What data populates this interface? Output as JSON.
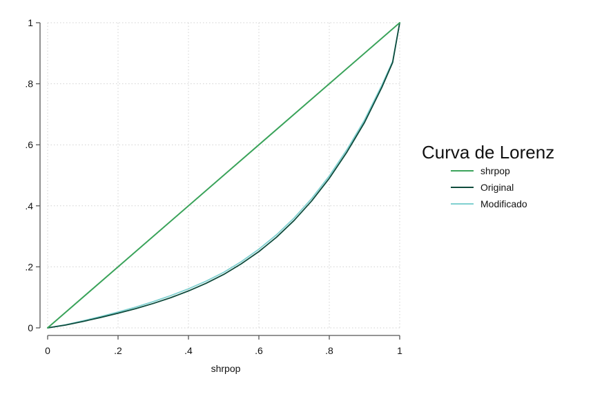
{
  "chart_data": {
    "type": "line",
    "xlabel": "shrpop",
    "ylabel": "",
    "xlim": [
      0,
      1
    ],
    "ylim": [
      0,
      1
    ],
    "x_ticks": [
      0,
      0.2,
      0.4,
      0.6,
      0.8,
      1
    ],
    "x_tick_labels": [
      "0",
      ".2",
      ".4",
      ".6",
      ".8",
      "1"
    ],
    "y_ticks": [
      0,
      0.2,
      0.4,
      0.6,
      0.8,
      1
    ],
    "y_tick_labels": [
      "0",
      ".2",
      ".4",
      ".6",
      ".8",
      "1"
    ],
    "grid": true,
    "legend": {
      "title": "Curva de Lorenz",
      "placement": "right"
    },
    "series": [
      {
        "name": "shrpop",
        "color": "#3aa35a",
        "x": [
          0,
          1
        ],
        "y": [
          0,
          1
        ]
      },
      {
        "name": "Original",
        "color": "#0e4b3c",
        "x": [
          0,
          0.05,
          0.1,
          0.15,
          0.2,
          0.25,
          0.3,
          0.35,
          0.4,
          0.45,
          0.5,
          0.55,
          0.6,
          0.65,
          0.7,
          0.75,
          0.8,
          0.85,
          0.9,
          0.95,
          0.98,
          1
        ],
        "y": [
          0,
          0.009,
          0.021,
          0.034,
          0.048,
          0.063,
          0.08,
          0.099,
          0.121,
          0.146,
          0.175,
          0.21,
          0.25,
          0.297,
          0.352,
          0.416,
          0.49,
          0.576,
          0.673,
          0.79,
          0.87,
          1
        ]
      },
      {
        "name": "Modificado",
        "color": "#7fd0d0",
        "x": [
          0,
          0.05,
          0.1,
          0.15,
          0.2,
          0.25,
          0.3,
          0.35,
          0.4,
          0.45,
          0.5,
          0.55,
          0.6,
          0.65,
          0.7,
          0.75,
          0.8,
          0.85,
          0.9,
          0.95,
          0.98,
          1
        ],
        "y": [
          0,
          0.01,
          0.023,
          0.037,
          0.052,
          0.068,
          0.086,
          0.106,
          0.128,
          0.153,
          0.182,
          0.217,
          0.258,
          0.305,
          0.36,
          0.424,
          0.498,
          0.584,
          0.681,
          0.797,
          0.874,
          1
        ]
      }
    ]
  }
}
